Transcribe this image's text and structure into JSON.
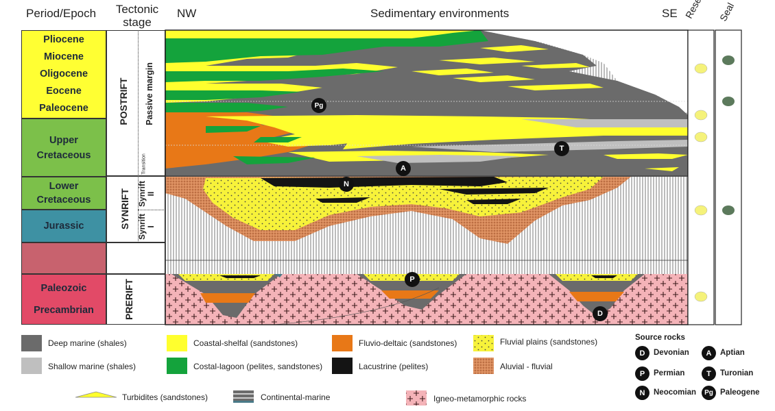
{
  "headers": {
    "period_epoch": "Period/Epoch",
    "tectonic_stage": "Tectonic\nstage",
    "nw": "NW",
    "sedimentary_environments": "Sedimentary environments",
    "se": "SE",
    "reserv": "Reserv.",
    "seal": "Seal"
  },
  "periods": [
    {
      "id": "tertiary",
      "labels": [
        "Pliocene",
        "Miocene",
        "Oligocene",
        "Eocene",
        "Paleocene"
      ],
      "color": "#ffff33"
    },
    {
      "id": "upper-cretaceous",
      "labels": [
        "Upper",
        "Cretaceous"
      ],
      "color": "#7cc04a"
    },
    {
      "id": "lower-cretaceous",
      "labels": [
        "Lower",
        "Cretaceous"
      ],
      "color": "#7cc04a"
    },
    {
      "id": "jurassic",
      "labels": [
        "Jurassic"
      ],
      "color": "#3e91a3"
    },
    {
      "id": "unnamed",
      "labels": [],
      "color": "#c8626e"
    },
    {
      "id": "paleozoic",
      "labels": [
        "Paleozoic",
        "Precambrian"
      ],
      "color": "#e24a67"
    }
  ],
  "tectonic": {
    "postrift": "POSTRIFT",
    "passive_margin": "Passive margin",
    "transition": "Transition",
    "synrift": "SYNRIFT",
    "synrift_ii": "Synrift\nII",
    "synrift_i": "Synrift\nI",
    "prerift": "PRERIFT"
  },
  "source_markers": {
    "pg": "Pg",
    "t": "T",
    "a": "A",
    "n": "N",
    "p": "P",
    "d": "D"
  },
  "legend": {
    "deep_marine": "Deep marine (shales)",
    "shallow_marine": "Shallow marine (shales)",
    "coastal_shelfal": "Coastal-shelfal (sandstones)",
    "costal_lagoon": "Costal-lagoon (pelites, sandstones)",
    "fluvio_deltaic": "Fluvio-deltaic (sandstones)",
    "lacustrine": "Lacustrine (pelites)",
    "fluvial_plains": "Fluvial plains (sandstones)",
    "aluvial_fluvial": "Aluvial - fluvial",
    "turbidites": "Turbidites (sandstones)",
    "continental_marine": "Continental-marine",
    "igneo_metamorphic": "Igneo-metamorphic rocks"
  },
  "source_rocks": {
    "title": "Source rocks",
    "items": [
      {
        "code": "D",
        "label": "Devonian"
      },
      {
        "code": "A",
        "label": "Aptian"
      },
      {
        "code": "P",
        "label": "Permian"
      },
      {
        "code": "T",
        "label": "Turonian"
      },
      {
        "code": "N",
        "label": "Neocomian"
      },
      {
        "code": "Pg",
        "label": "Paleogene"
      }
    ]
  },
  "colors": {
    "deep_marine": "#6b6b6b",
    "shallow_marine": "#bfbfbf",
    "coastal_shelfal": "#ffff2e",
    "costal_lagoon": "#14a33c",
    "fluvio_deltaic": "#e87817",
    "lacustrine": "#141414",
    "fluvial_plains": "#f7f23a",
    "aluvial_fluvial": "#d98a5a",
    "igneo": "#f4b3b8",
    "reservoir": "#f5f27a",
    "seal": "#5c7a5c"
  }
}
